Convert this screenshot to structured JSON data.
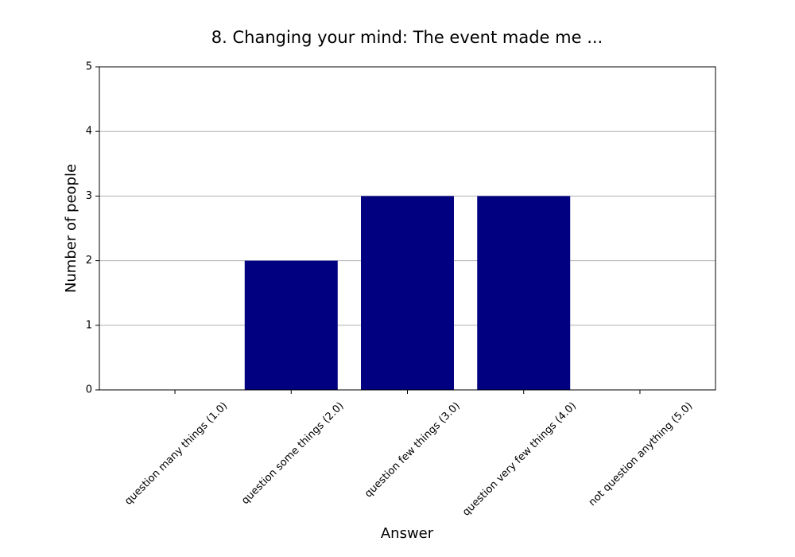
{
  "chart_data": {
    "type": "bar",
    "title": "8. Changing your mind: The event made me ...",
    "xlabel": "Answer",
    "ylabel": "Number of people",
    "categories": [
      "question many things (1.0)",
      "question some things (2.0)",
      "question few things (3.0)",
      "question very few things (4.0)",
      "not question anything (5.0)"
    ],
    "values": [
      0,
      2,
      3,
      3,
      0
    ],
    "color": "#000080",
    "ylim": [
      0,
      5
    ],
    "yticks": [
      0,
      1,
      2,
      3,
      4,
      5
    ],
    "grid": true
  }
}
